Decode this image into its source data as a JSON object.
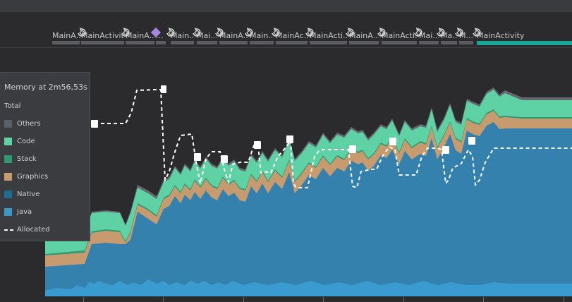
{
  "activities": [
    {
      "label": "MainA...",
      "active": false
    },
    {
      "label": "MainActivit...",
      "active": false
    },
    {
      "label": "MainA...",
      "active": false
    },
    {
      "label": "...",
      "active": false
    },
    {
      "label": "Main...",
      "active": false
    },
    {
      "label": "Mai...",
      "active": false
    },
    {
      "label": "MainA...",
      "active": false
    },
    {
      "label": "Main...",
      "active": false
    },
    {
      "label": "MainAc...",
      "active": false
    },
    {
      "label": "MainActi...",
      "active": false
    },
    {
      "label": "MainA...",
      "active": false
    },
    {
      "label": "MainActi...",
      "active": false
    },
    {
      "label": "Mai...",
      "active": false
    },
    {
      "label": "Ma...",
      "active": false
    },
    {
      "label": "M...",
      "active": false
    },
    {
      "label": "MainActivity",
      "active": true
    }
  ],
  "legend": {
    "title": "Memory at 2m56,53s",
    "total_label": "Total",
    "items": [
      {
        "label": "Others",
        "color": "#58616a"
      },
      {
        "label": "Code",
        "color": "#5ed2a4"
      },
      {
        "label": "Stack",
        "color": "#2e9a72"
      },
      {
        "label": "Graphics",
        "color": "#c89b6e"
      },
      {
        "label": "Native",
        "color": "#1e6d93"
      },
      {
        "label": "Java",
        "color": "#3a97c9"
      },
      {
        "label": "Allocated",
        "color": "#ffffff",
        "dashed": true
      }
    ]
  },
  "colors": {
    "background": "#2b2b2d",
    "java": "#3a97c9",
    "native": "#2f7fa9",
    "graphics": "#c89b6e",
    "stack": "#2e9a72",
    "code": "#5ed2a4",
    "others": "#646a70",
    "accent": "#1aa597"
  },
  "icons": {
    "activity_event": "rotate-event-icon",
    "gc_event": "trash-can-icon",
    "selected_event": "purple-diamond-icon"
  }
}
